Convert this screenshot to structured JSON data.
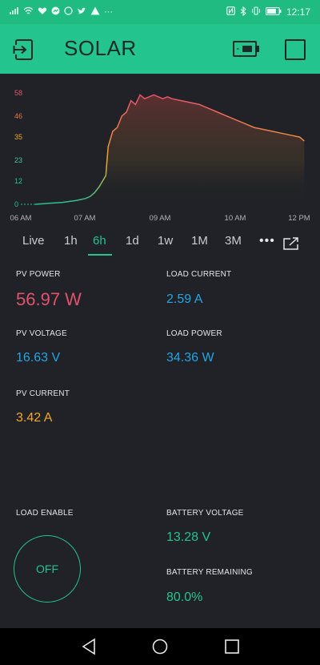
{
  "status_bar": {
    "time": "12:17",
    "dots": "···"
  },
  "app": {
    "title": "SOLAR"
  },
  "tabs": [
    {
      "label": "Live",
      "active": false
    },
    {
      "label": "1h",
      "active": false
    },
    {
      "label": "6h",
      "active": true
    },
    {
      "label": "1d",
      "active": false
    },
    {
      "label": "1w",
      "active": false
    },
    {
      "label": "1M",
      "active": false
    },
    {
      "label": "3M",
      "active": false
    }
  ],
  "more_label": "•••",
  "metrics": {
    "pv_power": {
      "label": "PV POWER",
      "value": "56.97 W"
    },
    "load_current": {
      "label": "LOAD CURRENT",
      "value": "2.59 A"
    },
    "pv_voltage": {
      "label": "PV VOLTAGE",
      "value": "16.63 V"
    },
    "load_power": {
      "label": "LOAD POWER",
      "value": "34.36 W"
    },
    "pv_current": {
      "label": "PV CURRENT",
      "value": "3.42 A"
    },
    "load_enable": {
      "label": "LOAD ENABLE",
      "button": "OFF"
    },
    "battery_voltage": {
      "label": "BATTERY VOLTAGE",
      "value": "13.28 V"
    },
    "battery_remaining": {
      "label": "BATTERY REMAINING",
      "value": "80.0%"
    }
  },
  "colors": {
    "accent": "#23c48e",
    "red": "#e2526c",
    "blue": "#22a6e3",
    "orange": "#f0a92a",
    "background": "#212227"
  },
  "chart_data": {
    "type": "area",
    "y_ticks": [
      0,
      12,
      23,
      35,
      46,
      58
    ],
    "x_ticks": [
      "06 AM",
      "07 AM",
      "09 AM",
      "10 AM",
      "12 PM"
    ],
    "ylim": [
      0,
      58
    ],
    "xlim_hours": [
      6,
      12
    ],
    "series": [
      {
        "x": [
          6.0,
          6.3,
          6.6,
          6.9,
          7.1,
          7.2,
          7.3,
          7.4,
          7.55,
          7.6,
          7.7,
          7.8,
          7.9,
          8.0,
          8.1,
          8.2,
          8.3,
          8.4,
          8.5,
          8.6,
          8.7,
          8.8,
          8.9,
          9.0,
          9.2,
          9.4,
          9.6,
          9.8,
          10.0,
          10.2,
          10.4,
          10.6,
          10.8,
          11.0,
          11.2,
          11.4,
          11.6,
          11.8,
          11.9
        ],
        "values": [
          0,
          0.5,
          1,
          2,
          3,
          4,
          6,
          9,
          15,
          30,
          38,
          40,
          46,
          48,
          54,
          52,
          57,
          55,
          56,
          57,
          56,
          55,
          56,
          55,
          54,
          53,
          52,
          50,
          48,
          46,
          44,
          42,
          40,
          39,
          38,
          37,
          36,
          35,
          33
        ]
      }
    ]
  }
}
